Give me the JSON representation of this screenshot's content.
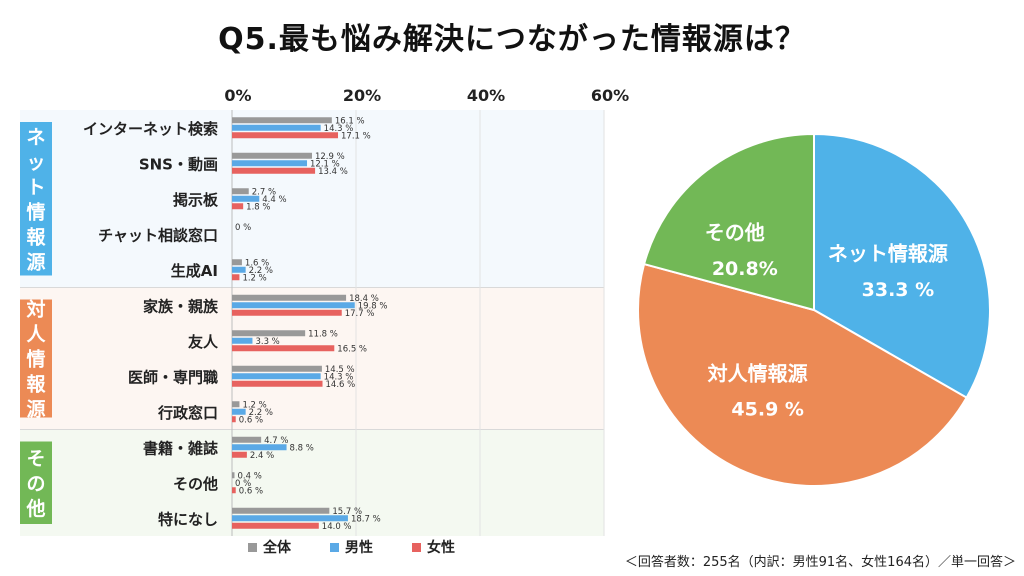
{
  "title": "Q5.最も悩み解決につながった情報源は？",
  "footnote": "＜回答者数：255名（内訳：男性91名、女性164名）／単一回答＞",
  "colors": {
    "all": "#999999",
    "male": "#5aa9e6",
    "female": "#e7625f",
    "net": "#4fb2e8",
    "person": "#ec8a55",
    "other": "#72b856",
    "net_bg": "#f4f9fd",
    "person_bg": "#fdf6f2",
    "other_bg": "#f4f9f1"
  },
  "chart_data": [
    {
      "type": "bar",
      "orientation": "horizontal",
      "xlim": [
        0,
        60
      ],
      "x_ticks": [
        "0%",
        "20%",
        "40%",
        "60%"
      ],
      "x_tick_values": [
        0,
        20,
        40,
        60
      ],
      "grid": true,
      "legend_position": "bottom",
      "groups": [
        {
          "label": "ネット情報源",
          "start": 0,
          "count": 5,
          "color_key": "net"
        },
        {
          "label": "対人情報源",
          "start": 5,
          "count": 4,
          "color_key": "person"
        },
        {
          "label": "その他",
          "start": 9,
          "count": 3,
          "color_key": "other"
        }
      ],
      "categories": [
        "インターネット検索",
        "SNS・動画",
        "掲示板",
        "チャット相談窓口",
        "生成AI",
        "家族・親族",
        "友人",
        "医師・専門職",
        "行政窓口",
        "書籍・雑誌",
        "その他",
        "特になし"
      ],
      "series": [
        {
          "name": "全体",
          "color_key": "all",
          "values": [
            16.1,
            12.9,
            2.7,
            0,
            1.6,
            18.4,
            11.8,
            14.5,
            1.2,
            4.7,
            0.4,
            15.7
          ],
          "labels": [
            "16.1 %",
            "12.9 %",
            "2.7 %",
            "0 %",
            "1.6 %",
            "18.4 %",
            "11.8 %",
            "14.5 %",
            "1.2 %",
            "4.7 %",
            "0.4 %",
            "15.7 %"
          ]
        },
        {
          "name": "男性",
          "color_key": "male",
          "values": [
            14.3,
            12.1,
            4.4,
            0,
            2.2,
            19.8,
            3.3,
            14.3,
            2.2,
            8.8,
            0,
            18.7
          ],
          "labels": [
            "14.3 %",
            "12.1 %",
            "4.4 %",
            "",
            "2.2 %",
            "19.8 %",
            "3.3 %",
            "14.3 %",
            "2.2 %",
            "8.8 %",
            "0 %",
            "18.7 %"
          ]
        },
        {
          "name": "女性",
          "color_key": "female",
          "values": [
            17.1,
            13.4,
            1.8,
            0,
            1.2,
            17.7,
            16.5,
            14.6,
            0.6,
            2.4,
            0.6,
            14.0
          ],
          "labels": [
            "17.1 %",
            "13.4 %",
            "1.8 %",
            "",
            "1.2 %",
            "17.7 %",
            "16.5 %",
            "14.6 %",
            "0.6 %",
            "2.4 %",
            "0.6 %",
            "14.0 %"
          ]
        }
      ]
    },
    {
      "type": "pie",
      "slices": [
        {
          "label": "ネット情報源",
          "value": 33.3,
          "value_label": "33.3 %",
          "color_key": "net"
        },
        {
          "label": "対人情報源",
          "value": 45.9,
          "value_label": "45.9 %",
          "color_key": "person"
        },
        {
          "label": "その他",
          "value": 20.8,
          "value_label": "20.8%",
          "color_key": "other"
        }
      ]
    }
  ]
}
